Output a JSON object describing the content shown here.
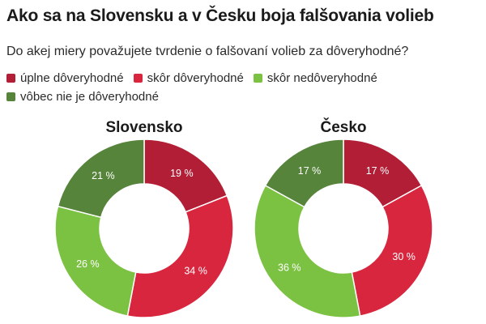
{
  "title": "Ako sa na Slovensku a v Česku boja falšovania volieb",
  "subtitle": "Do akej miery považujete tvrdenie o falšovaní volieb za dôveryhodné?",
  "legend": [
    {
      "label": "úplne dôveryhodné",
      "color": "#b21e35"
    },
    {
      "label": "skôr dôveryhodné",
      "color": "#d9263f"
    },
    {
      "label": "skôr nedôveryhodné",
      "color": "#7cc242"
    },
    {
      "label": "vôbec nie je dôveryhodné",
      "color": "#55843a"
    }
  ],
  "chart_data": [
    {
      "type": "pie",
      "title": "Slovensko",
      "categories": [
        "úplne dôveryhodné",
        "skôr dôveryhodné",
        "skôr nedôveryhodné",
        "vôbec nie je dôveryhodné"
      ],
      "values": [
        19,
        34,
        26,
        21
      ],
      "labels": [
        "19 %",
        "34 %",
        "26 %",
        "21 %"
      ],
      "colors": [
        "#b21e35",
        "#d9263f",
        "#7cc242",
        "#55843a"
      ]
    },
    {
      "type": "pie",
      "title": "Česko",
      "categories": [
        "úplne dôveryhodné",
        "skôr dôveryhodné",
        "skôr nedôveryhodné",
        "vôbec nie je dôveryhodné"
      ],
      "values": [
        17,
        30,
        36,
        17
      ],
      "labels": [
        "17 %",
        "30 %",
        "36 %",
        "17 %"
      ],
      "colors": [
        "#b21e35",
        "#d9263f",
        "#7cc242",
        "#55843a"
      ]
    }
  ]
}
